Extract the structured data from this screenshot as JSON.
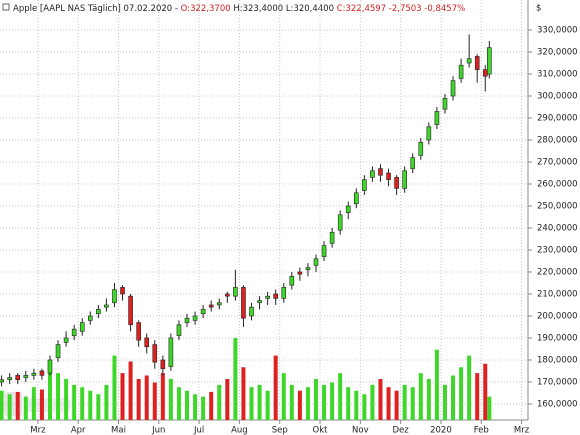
{
  "chart_data": {
    "type": "candlestick",
    "title_name": "Apple [AAPL NAS Täglich] 07.02.2020 -",
    "title_open": "O:322,3700",
    "title_hl": "H:323,4000 L:320,4400",
    "title_close": "C:322,4597 -2,7503 -0,8457%",
    "y_unit": "$",
    "up_color": "#3fd62a",
    "down_color": "#dd2020",
    "grid": true,
    "xlim": [
      2.06,
      15.16
    ],
    "ylim": [
      152.7,
      338.2
    ],
    "xticks": [
      {
        "value": 3,
        "label": "Mrz"
      },
      {
        "value": 4,
        "label": "Apr"
      },
      {
        "value": 5,
        "label": "Mai"
      },
      {
        "value": 6,
        "label": "Jun"
      },
      {
        "value": 7,
        "label": "Jul"
      },
      {
        "value": 8,
        "label": "Aug"
      },
      {
        "value": 9,
        "label": "Sep"
      },
      {
        "value": 10,
        "label": "Okt"
      },
      {
        "value": 11,
        "label": "Nov"
      },
      {
        "value": 12,
        "label": "Dez"
      },
      {
        "value": 13,
        "label": "2020"
      },
      {
        "value": 14,
        "label": "Feb"
      },
      {
        "value": 15,
        "label": "Mrz"
      }
    ],
    "yticks": [
      {
        "value": 160,
        "label": "160,0000"
      },
      {
        "value": 170,
        "label": "170,0000"
      },
      {
        "value": 180,
        "label": "180,0000"
      },
      {
        "value": 190,
        "label": "190,0000"
      },
      {
        "value": 200,
        "label": "200,0000"
      },
      {
        "value": 210,
        "label": "210,0000"
      },
      {
        "value": 220,
        "label": "220,0000"
      },
      {
        "value": 230,
        "label": "230,0000"
      },
      {
        "value": 240,
        "label": "240,0000"
      },
      {
        "value": 250,
        "label": "250,0000"
      },
      {
        "value": 260,
        "label": "260,0000"
      },
      {
        "value": 270,
        "label": "270,0000"
      },
      {
        "value": 280,
        "label": "280,0000"
      },
      {
        "value": 290,
        "label": "290,0000"
      },
      {
        "value": 300,
        "label": "300,0000"
      },
      {
        "value": 310,
        "label": "310,0000"
      },
      {
        "value": 320,
        "label": "320,0000"
      },
      {
        "value": 330,
        "label": "330,0000"
      }
    ],
    "x": [
      2.1,
      2.3,
      2.5,
      2.7,
      2.9,
      3.1,
      3.3,
      3.5,
      3.7,
      3.9,
      4.1,
      4.3,
      4.5,
      4.7,
      4.9,
      5.1,
      5.3,
      5.5,
      5.7,
      5.9,
      6.1,
      6.3,
      6.5,
      6.7,
      6.9,
      7.1,
      7.3,
      7.5,
      7.7,
      7.9,
      8.1,
      8.3,
      8.5,
      8.7,
      8.9,
      9.1,
      9.3,
      9.5,
      9.7,
      9.9,
      10.1,
      10.3,
      10.5,
      10.7,
      10.9,
      11.1,
      11.3,
      11.5,
      11.7,
      11.9,
      12.1,
      12.3,
      12.5,
      12.7,
      12.9,
      13.1,
      13.3,
      13.5,
      13.7,
      13.9,
      14.1,
      14.2
    ],
    "open": [
      170,
      171,
      173,
      172,
      173,
      175,
      174,
      181,
      188,
      191,
      193,
      198,
      201,
      204,
      206,
      213,
      209,
      197,
      190,
      187,
      180,
      177,
      191,
      197,
      198,
      201,
      205,
      205,
      210,
      209,
      213,
      200,
      206,
      208,
      210,
      208,
      214,
      220,
      221,
      223,
      227,
      233,
      239,
      247,
      251,
      257,
      263,
      267,
      265,
      263,
      258,
      267,
      273,
      280,
      287,
      294,
      300,
      308,
      315,
      318,
      312,
      310
    ],
    "high": [
      173,
      174,
      174,
      175,
      176,
      176,
      182,
      189,
      193,
      196,
      199,
      202,
      205,
      208,
      215,
      214,
      210,
      198,
      192,
      189,
      182,
      192,
      198,
      201,
      202,
      205,
      207,
      208,
      211,
      221,
      214,
      206,
      209,
      211,
      212,
      215,
      220,
      222,
      224,
      228,
      234,
      240,
      248,
      252,
      258,
      264,
      268,
      269,
      267,
      264,
      268,
      274,
      281,
      288,
      295,
      301,
      309,
      317,
      328,
      319,
      314,
      325
    ],
    "low": [
      168,
      169,
      169,
      170,
      171,
      171,
      173,
      179,
      186,
      189,
      191,
      196,
      199,
      202,
      204,
      207,
      193,
      186,
      183,
      176,
      173,
      175,
      189,
      195,
      196,
      199,
      202,
      203,
      206,
      207,
      195,
      198,
      203,
      205,
      205,
      206,
      212,
      216,
      218,
      220,
      225,
      231,
      237,
      244,
      249,
      255,
      261,
      261,
      259,
      255,
      256,
      265,
      271,
      278,
      285,
      292,
      298,
      306,
      313,
      306,
      302,
      308
    ],
    "close": [
      171,
      172,
      171,
      173,
      174,
      173,
      180,
      187,
      190,
      194,
      197,
      200,
      203,
      205,
      212,
      210,
      196,
      189,
      186,
      179,
      176,
      190,
      196,
      199,
      200,
      203,
      204,
      206,
      209,
      213,
      199,
      204,
      207,
      209,
      208,
      213,
      218,
      219,
      222,
      226,
      232,
      238,
      246,
      250,
      256,
      262,
      266,
      264,
      262,
      258,
      266,
      272,
      279,
      286,
      293,
      299,
      307,
      314,
      317,
      312,
      309,
      322
    ],
    "volume": [
      25,
      22,
      24,
      20,
      28,
      26,
      45,
      40,
      35,
      30,
      28,
      25,
      22,
      30,
      55,
      40,
      50,
      35,
      38,
      32,
      40,
      35,
      28,
      25,
      22,
      20,
      24,
      30,
      35,
      70,
      45,
      28,
      30,
      25,
      55,
      40,
      30,
      25,
      28,
      35,
      30,
      32,
      40,
      28,
      25,
      22,
      30,
      35,
      28,
      25,
      30,
      28,
      40,
      35,
      60,
      30,
      38,
      45,
      55,
      40,
      48,
      20
    ]
  }
}
